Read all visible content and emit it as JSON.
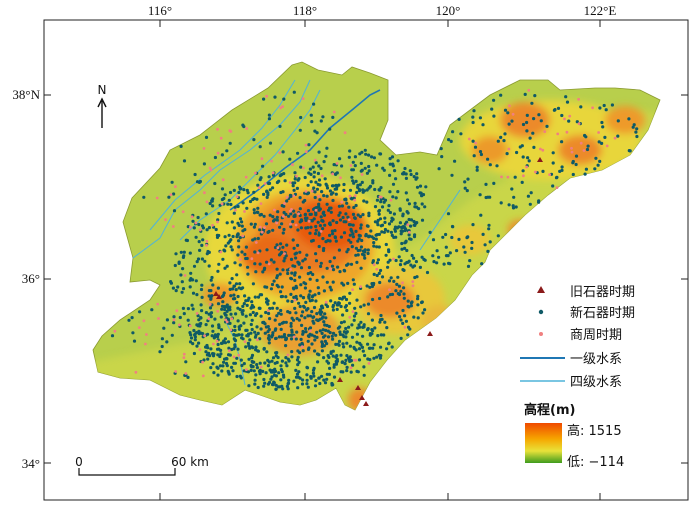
{
  "map": {
    "lon_labels": [
      "116°",
      "118°",
      "120°",
      "122°E"
    ],
    "lat_labels": [
      "38°N",
      "36°",
      "34°"
    ],
    "north_arrow_label": "N",
    "scale_bar": {
      "start_label": "0",
      "end_label": "60 km"
    },
    "legend": {
      "items": [
        {
          "label": "旧石器时期",
          "symbol": "triangle",
          "color": "#8b1a1a"
        },
        {
          "label": "新石器时期",
          "symbol": "dot",
          "color": "#0f5a66"
        },
        {
          "label": "商周时期",
          "symbol": "dot",
          "color": "#f08080"
        },
        {
          "label": "一级水系",
          "symbol": "line",
          "color": "#1f77b4"
        },
        {
          "label": "四级水系",
          "symbol": "line",
          "color": "#4fb3d9"
        }
      ],
      "elevation_title": "高程(m)",
      "elevation_high": "高: 1515",
      "elevation_low": "低: −114"
    },
    "colors": {
      "lowland": "#b7cf4a",
      "plain": "#cfd64a",
      "hill_yellow": "#e8d63a",
      "hill_orange": "#ec8a2a",
      "peak": "#e65a10",
      "river_major": "#1f77b4",
      "river_minor": "#4fb3d9"
    }
  }
}
